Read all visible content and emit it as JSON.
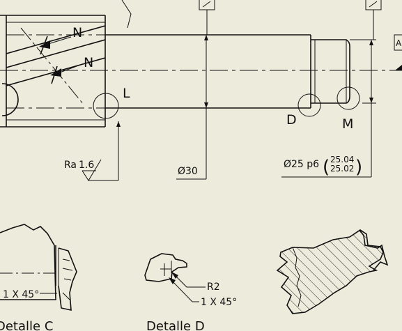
{
  "section_labels": {
    "n_top": "N",
    "n_bottom": "N"
  },
  "detail_markers": {
    "l": "L",
    "d": "D",
    "m": "M"
  },
  "datum_label": "A",
  "roughness": {
    "prefix": "Ra",
    "value": "1.6"
  },
  "dimensions": {
    "shaft_diameter": "Ø30",
    "journal_diameter": "Ø25 p6",
    "journal_upper": "25.04",
    "journal_lower": "25.02"
  },
  "detail_c": {
    "chamfer": "1 X 45°",
    "caption": "Detalle C"
  },
  "detail_d": {
    "radius": "R2",
    "chamfer": "1 X 45°",
    "caption": "Detalle D"
  }
}
